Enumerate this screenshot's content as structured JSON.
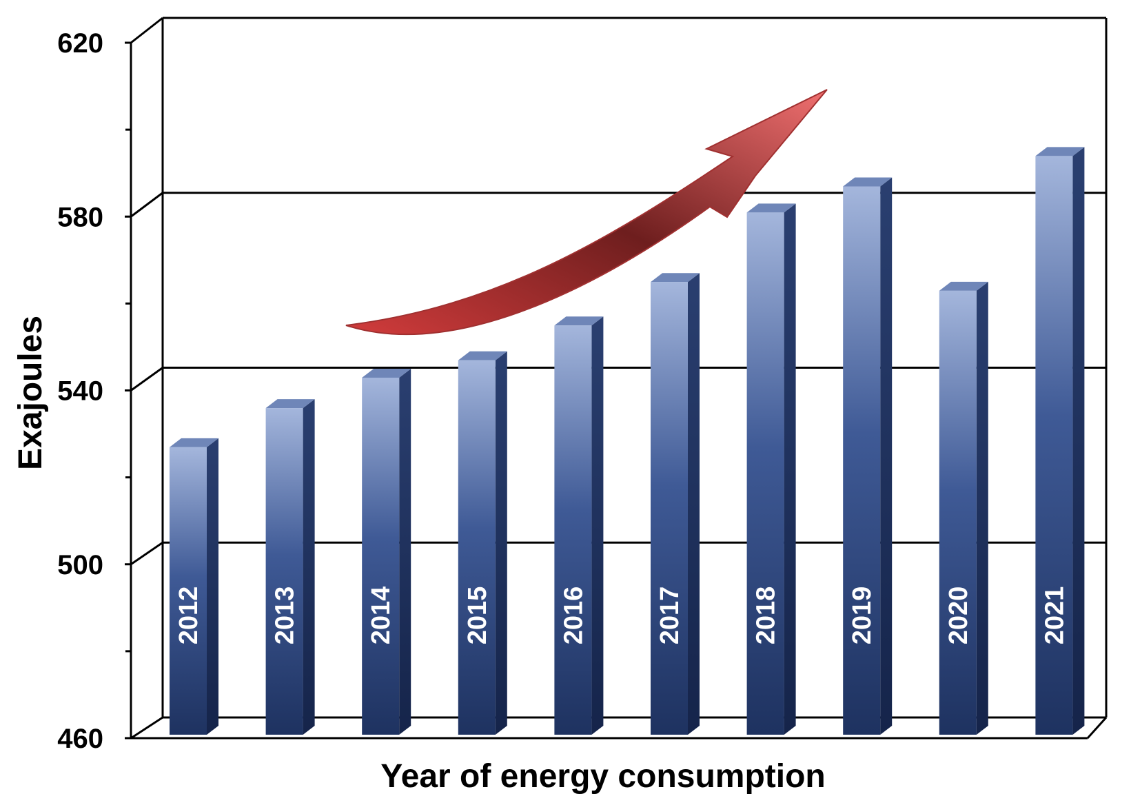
{
  "chart_data": {
    "type": "bar",
    "categories": [
      "2012",
      "2013",
      "2014",
      "2015",
      "2016",
      "2017",
      "2018",
      "2019",
      "2020",
      "2021"
    ],
    "values": [
      529,
      538,
      545,
      549,
      557,
      567,
      583,
      589,
      565,
      596
    ],
    "xlabel": "Year of energy consumption",
    "ylabel": "Exajoules",
    "ylim": [
      460,
      620
    ],
    "yticks": [
      "460",
      "500",
      "540",
      "580",
      "620"
    ],
    "grid": true,
    "legend": "none",
    "colors": {
      "bar_light": "#a4b6dc",
      "bar_mid": "#3f5a96",
      "bar_dark": "#1e3260",
      "bar_side": "#1a2c55",
      "bar_top": "#6f86b8",
      "arrow_light": "#f07070",
      "arrow_dark": "#6e1e1e"
    },
    "annotations": [
      "increasing-trend-arrow"
    ]
  }
}
